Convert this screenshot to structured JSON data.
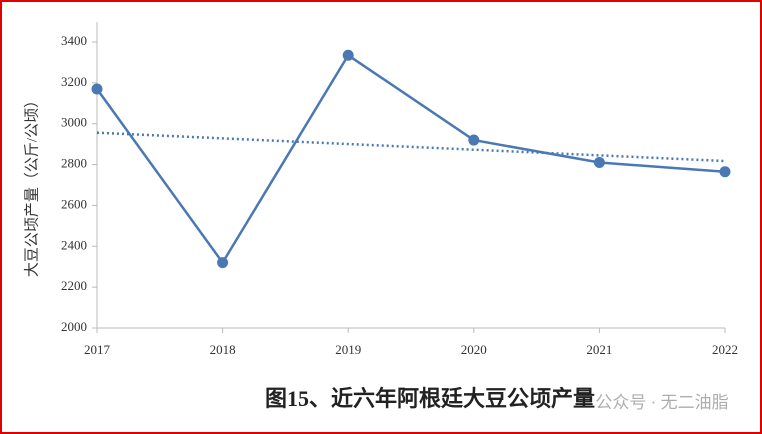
{
  "chart_data": {
    "type": "line",
    "title": "图15、近六年阿根廷大豆公顷产量",
    "y_label": "大豆公顷产量（公斤/公顷）",
    "watermark": "公众号 · 无二油脂",
    "categories": [
      "2017",
      "2018",
      "2019",
      "2020",
      "2021",
      "2022"
    ],
    "series": [
      {
        "name": "大豆公顷产量",
        "color": "#4a78b5",
        "values": [
          3170,
          2320,
          3335,
          2920,
          2810,
          2765
        ]
      }
    ],
    "trendline": true,
    "ylim": [
      2000,
      3400
    ],
    "yticks": [
      2000,
      2200,
      2400,
      2600,
      2800,
      3000,
      3200,
      3400
    ]
  }
}
